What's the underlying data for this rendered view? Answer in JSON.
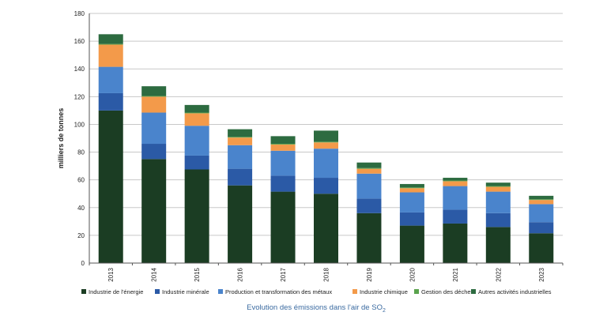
{
  "chart_data": {
    "type": "bar",
    "stacked": true,
    "ylabel": "milliers de tonnes",
    "ylim": [
      0,
      180
    ],
    "yticks": [
      0,
      20,
      40,
      60,
      80,
      100,
      120,
      140,
      160,
      180
    ],
    "grid": true,
    "legend_position": "bottom",
    "caption": {
      "prefix": "Evolution des émissions dans l'air de SO",
      "subscript": "2"
    },
    "categories": [
      "2013",
      "2014",
      "2015",
      "2016",
      "2017",
      "2018",
      "2019",
      "2020",
      "2021",
      "2022",
      "2023"
    ],
    "series": [
      {
        "name": "Industrie de l'énergie",
        "color": "#1b3d23",
        "values": [
          110,
          75,
          67.5,
          56,
          51.5,
          50,
          36,
          27,
          28.5,
          26,
          21.5
        ]
      },
      {
        "name": "Industrie minérale",
        "color": "#2b5aa6",
        "values": [
          12.5,
          11,
          10,
          12,
          11.5,
          11.5,
          10.5,
          9.5,
          10,
          10,
          8
        ]
      },
      {
        "name": "Production et transformation des métaux",
        "color": "#4a84cc",
        "values": [
          19,
          22.5,
          21.5,
          17,
          18,
          21,
          18,
          14.5,
          17,
          15.5,
          13
        ]
      },
      {
        "name": "Industrie chimique",
        "color": "#f39a4a",
        "values": [
          16,
          11.5,
          9,
          5.5,
          4.5,
          4.5,
          3.5,
          3,
          3.5,
          3.5,
          3
        ]
      },
      {
        "name": "Gestion des déchets",
        "color": "#5aa34d",
        "values": [
          0.5,
          0.5,
          0.5,
          0.5,
          0.5,
          0.5,
          0.5,
          0.5,
          0.5,
          0.5,
          0.5
        ]
      },
      {
        "name": "Autres activités industrielles",
        "color": "#2d6b40",
        "values": [
          7,
          7,
          5.5,
          5.5,
          5.5,
          8,
          4,
          2.5,
          2,
          2.5,
          2.5
        ]
      }
    ]
  }
}
